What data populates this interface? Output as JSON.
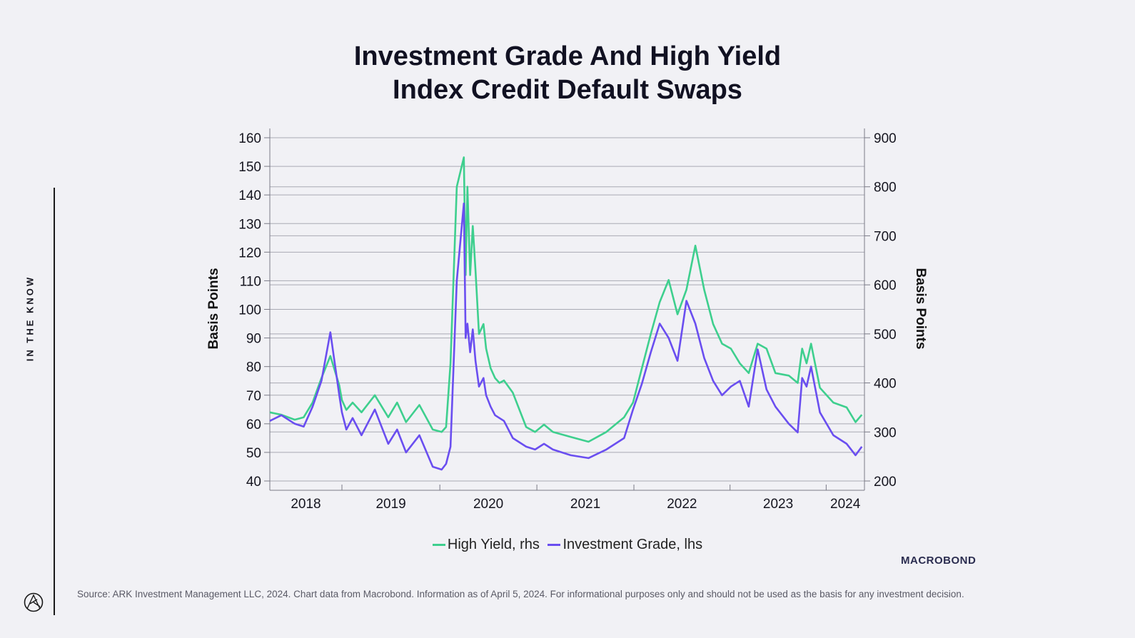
{
  "title_lines": [
    "Investment Grade And High Yield",
    "Index Credit Default Swaps"
  ],
  "side_label": "IN THE KNOW",
  "brand": "MACROBOND",
  "source": "Source: ARK Investment Management LLC, 2024. Chart data from Macrobond. Information as of April 5, 2024. For informational purposes only and should not be used as the basis for any investment decision.",
  "colors": {
    "high_yield": "#3ecf8e",
    "investment_grade": "#6a4ef0",
    "gridline": "#a9aab4",
    "axis": "#7a7a86",
    "background": "#f1f1f5"
  },
  "chart_data": {
    "type": "line",
    "xlabel": "",
    "ylabel_left": "Basis Points",
    "ylabel_right": "Basis Points",
    "ylim_left": [
      40,
      160
    ],
    "ylim_right": [
      200,
      900
    ],
    "yticks_left": [
      "40",
      "50",
      "60",
      "70",
      "80",
      "90",
      "100",
      "110",
      "120",
      "130",
      "140",
      "150",
      "160"
    ],
    "yticks_right": [
      "200",
      "300",
      "400",
      "500",
      "600",
      "700",
      "800",
      "900"
    ],
    "xlim": [
      2017.62,
      2024.3
    ],
    "xticks": [
      "2018",
      "2019",
      "2020",
      "2021",
      "2022",
      "2023",
      "2024"
    ],
    "year_boundaries": [
      2018.43,
      2019.53,
      2020.62,
      2021.71,
      2022.79,
      2023.87
    ],
    "grid": true,
    "legend_position": "bottom",
    "series": [
      {
        "name": "High Yield, rhs",
        "axis": "right",
        "color": "#3ecf8e",
        "x": [
          2017.62,
          2017.75,
          2017.9,
          2018.0,
          2018.1,
          2018.2,
          2018.3,
          2018.4,
          2018.43,
          2018.48,
          2018.55,
          2018.65,
          2018.8,
          2018.95,
          2019.05,
          2019.15,
          2019.3,
          2019.45,
          2019.55,
          2019.6,
          2019.65,
          2019.72,
          2019.8,
          2019.82,
          2019.84,
          2019.87,
          2019.9,
          2019.93,
          2019.97,
          2020.02,
          2020.05,
          2020.1,
          2020.15,
          2020.2,
          2020.25,
          2020.35,
          2020.5,
          2020.6,
          2020.7,
          2020.8,
          2021.0,
          2021.2,
          2021.4,
          2021.6,
          2021.7,
          2021.8,
          2021.9,
          2022.0,
          2022.1,
          2022.2,
          2022.3,
          2022.4,
          2022.5,
          2022.6,
          2022.7,
          2022.8,
          2022.9,
          2023.0,
          2023.1,
          2023.2,
          2023.3,
          2023.45,
          2023.55,
          2023.6,
          2023.65,
          2023.7,
          2023.8,
          2023.95,
          2024.1,
          2024.2,
          2024.27
        ],
        "y": [
          340,
          335,
          325,
          330,
          360,
          410,
          455,
          395,
          365,
          345,
          360,
          340,
          375,
          330,
          360,
          320,
          355,
          305,
          300,
          310,
          440,
          800,
          860,
          620,
          800,
          620,
          720,
          630,
          500,
          520,
          470,
          430,
          410,
          400,
          405,
          380,
          310,
          300,
          315,
          300,
          290,
          280,
          300,
          330,
          360,
          430,
          500,
          565,
          610,
          540,
          590,
          680,
          590,
          520,
          480,
          470,
          440,
          420,
          480,
          470,
          420,
          415,
          400,
          470,
          440,
          480,
          390,
          360,
          350,
          320,
          335
        ]
      },
      {
        "name": "Investment Grade, lhs",
        "axis": "left",
        "color": "#6a4ef0",
        "x": [
          2017.62,
          2017.75,
          2017.9,
          2018.0,
          2018.1,
          2018.2,
          2018.3,
          2018.4,
          2018.43,
          2018.48,
          2018.55,
          2018.65,
          2018.8,
          2018.95,
          2019.05,
          2019.15,
          2019.3,
          2019.45,
          2019.55,
          2019.6,
          2019.65,
          2019.72,
          2019.8,
          2019.82,
          2019.84,
          2019.87,
          2019.9,
          2019.93,
          2019.97,
          2020.02,
          2020.05,
          2020.1,
          2020.15,
          2020.2,
          2020.25,
          2020.35,
          2020.5,
          2020.6,
          2020.7,
          2020.8,
          2021.0,
          2021.2,
          2021.4,
          2021.6,
          2021.7,
          2021.8,
          2021.9,
          2022.0,
          2022.1,
          2022.2,
          2022.3,
          2022.4,
          2022.5,
          2022.6,
          2022.7,
          2022.8,
          2022.9,
          2023.0,
          2023.1,
          2023.2,
          2023.3,
          2023.45,
          2023.55,
          2023.6,
          2023.65,
          2023.7,
          2023.8,
          2023.95,
          2024.1,
          2024.2,
          2024.27
        ],
        "y": [
          61,
          63,
          60,
          59,
          66,
          75,
          92,
          70,
          64,
          58,
          62,
          56,
          65,
          53,
          58,
          50,
          56,
          45,
          44,
          46,
          52,
          110,
          137,
          90,
          95,
          85,
          93,
          82,
          73,
          76,
          70,
          66,
          63,
          62,
          61,
          55,
          52,
          51,
          53,
          51,
          49,
          48,
          51,
          55,
          65,
          74,
          85,
          95,
          90,
          82,
          103,
          95,
          83,
          75,
          70,
          73,
          75,
          66,
          86,
          72,
          66,
          60,
          57,
          76,
          73,
          80,
          64,
          56,
          53,
          49,
          52
        ]
      }
    ]
  }
}
